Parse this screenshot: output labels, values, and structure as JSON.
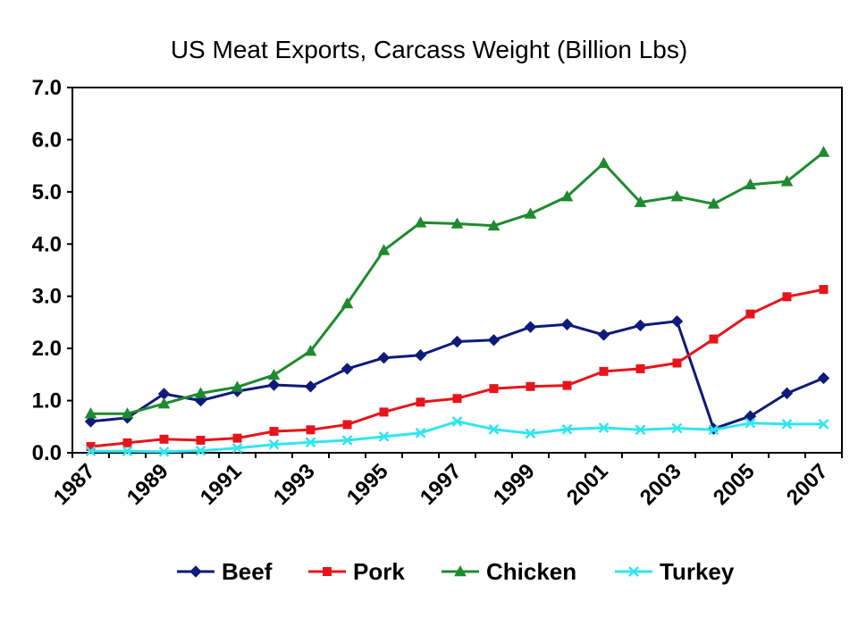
{
  "chart_data": {
    "type": "line",
    "title": "US Meat Exports, Carcass Weight (Billion Lbs)",
    "x": [
      1987,
      1988,
      1989,
      1990,
      1991,
      1992,
      1993,
      1994,
      1995,
      1996,
      1997,
      1998,
      1999,
      2000,
      2001,
      2002,
      2003,
      2004,
      2005,
      2006,
      2007
    ],
    "x_tick_labels": [
      "1987",
      "1989",
      "1991",
      "1993",
      "1995",
      "1997",
      "1999",
      "2001",
      "2003",
      "2005",
      "2007"
    ],
    "ylim": [
      0,
      7
    ],
    "y_tick_labels": [
      "0.0",
      "1.0",
      "2.0",
      "3.0",
      "4.0",
      "5.0",
      "6.0",
      "7.0"
    ],
    "grid": false,
    "legend_position": "bottom",
    "series": [
      {
        "name": "Beef",
        "color": "#0f1a7a",
        "marker": "diamond",
        "values": [
          0.6,
          0.67,
          1.13,
          1.0,
          1.18,
          1.3,
          1.27,
          1.61,
          1.82,
          1.87,
          2.13,
          2.16,
          2.41,
          2.46,
          2.26,
          2.44,
          2.52,
          0.46,
          0.7,
          1.14,
          1.43
        ]
      },
      {
        "name": "Pork",
        "color": "#e8141b",
        "marker": "square",
        "values": [
          0.12,
          0.19,
          0.26,
          0.24,
          0.28,
          0.41,
          0.44,
          0.54,
          0.78,
          0.97,
          1.04,
          1.23,
          1.27,
          1.29,
          1.56,
          1.61,
          1.72,
          2.18,
          2.66,
          2.99,
          3.13
        ]
      },
      {
        "name": "Chicken",
        "color": "#1f8a2f",
        "marker": "triangle",
        "values": [
          0.75,
          0.75,
          0.94,
          1.14,
          1.26,
          1.49,
          1.95,
          2.86,
          3.88,
          4.41,
          4.39,
          4.35,
          4.58,
          4.91,
          5.55,
          4.8,
          4.91,
          4.77,
          5.14,
          5.2,
          5.76
        ]
      },
      {
        "name": "Turkey",
        "color": "#2fe6ef",
        "marker": "x",
        "values": [
          0.03,
          0.03,
          0.02,
          0.04,
          0.09,
          0.16,
          0.2,
          0.24,
          0.31,
          0.38,
          0.6,
          0.45,
          0.37,
          0.45,
          0.48,
          0.44,
          0.47,
          0.44,
          0.57,
          0.55,
          0.55
        ]
      }
    ]
  }
}
